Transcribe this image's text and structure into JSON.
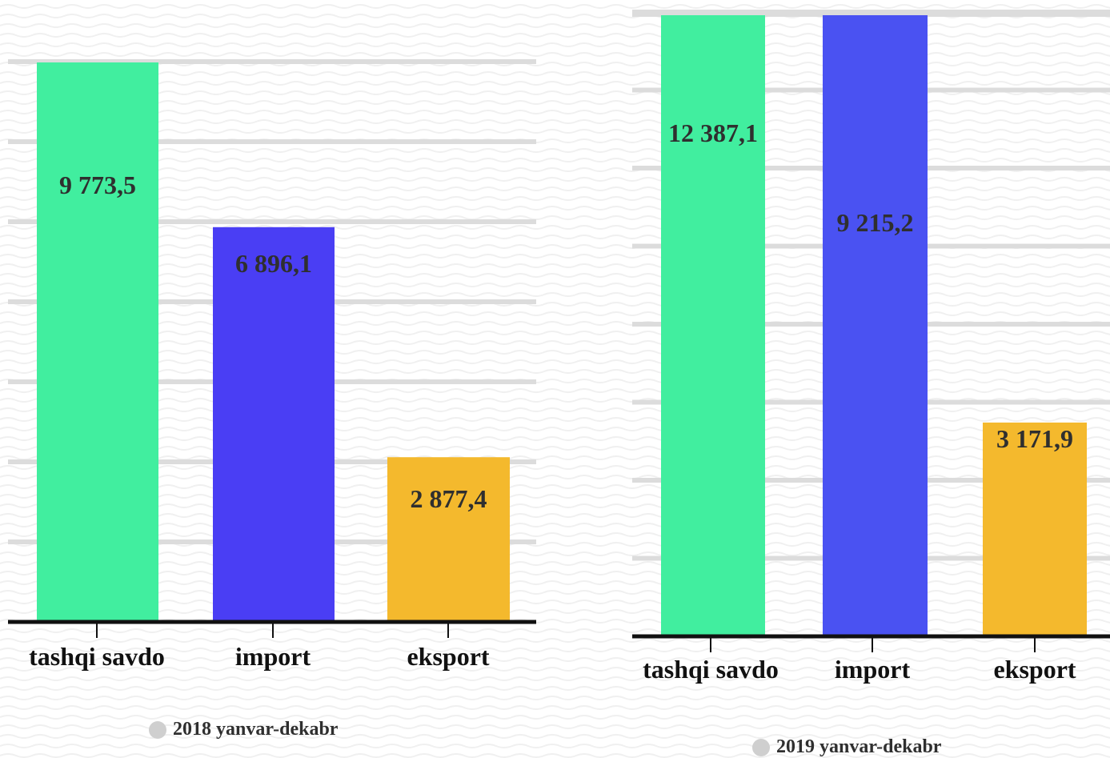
{
  "chart_data": [
    {
      "type": "bar",
      "categories": [
        "tashqi savdo",
        "import",
        "eksport"
      ],
      "values": [
        9773.5,
        6896.1,
        2877.4
      ],
      "value_labels": [
        "9 773,5",
        "6 896,1",
        "2 877,4"
      ],
      "colors": [
        "#41ee9f",
        "#4a3ef4",
        "#f4b92d"
      ],
      "ylim": [
        0,
        9773.5
      ],
      "grid": true,
      "legend": "2018 yanvar-dekabr",
      "legend_placement": "bottom",
      "legend_color": "#cfcfcf"
    },
    {
      "type": "bar",
      "categories": [
        "tashqi savdo",
        "import",
        "eksport"
      ],
      "values": [
        12387.1,
        9215.2,
        3171.9
      ],
      "value_labels": [
        "12 387,1",
        "9 215,2",
        "3 171,9"
      ],
      "colors": [
        "#41ee9f",
        "#4a52f2",
        "#f4b92d"
      ],
      "ylim": [
        0,
        9215.2
      ],
      "grid": true,
      "legend": "2019 yanvar-dekabr",
      "legend_placement": "bottom",
      "legend_color": "#cfcfcf"
    }
  ],
  "style": {
    "grid_color": "#dcdcdc",
    "axis_color": "#111111",
    "text_color": "#2f2f2f",
    "wave_color": "#f0f0f0"
  }
}
